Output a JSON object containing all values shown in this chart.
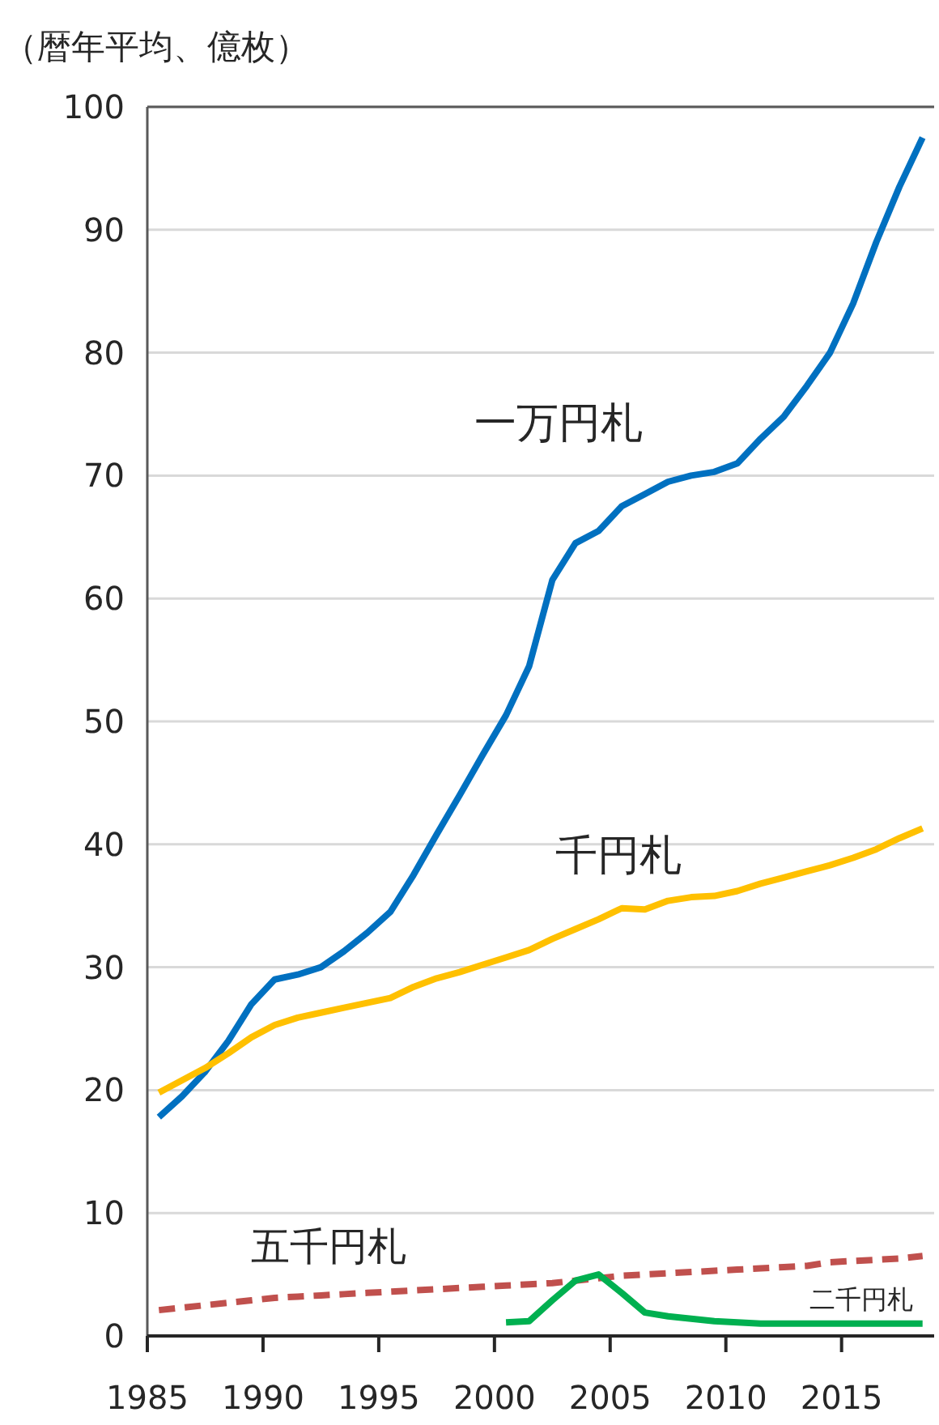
{
  "chart_data": {
    "type": "line",
    "ylabel": "（暦年平均、億枚）",
    "xlim": [
      1985,
      2019
    ],
    "xticks": [
      1985,
      1990,
      1995,
      2000,
      2005,
      2010,
      2015
    ],
    "ylim": [
      0,
      100
    ],
    "yticks": [
      0,
      10,
      20,
      30,
      40,
      50,
      60,
      70,
      80,
      90,
      100
    ],
    "grid": "y",
    "legend": false,
    "marker": "none",
    "series": [
      {
        "name": "一万円札",
        "color": "#0070c0",
        "line_style": "solid",
        "x": [
          1985.5,
          1986.5,
          1987.5,
          1988.5,
          1989.5,
          1990.5,
          1991.5,
          1992.5,
          1993.5,
          1994.5,
          1995.5,
          1996.5,
          1997.5,
          1998.5,
          1999.5,
          2000.5,
          2001.5,
          2002.5,
          2003.5,
          2004.5,
          2005.5,
          2006.5,
          2007.5,
          2008.5,
          2009.5,
          2010.5,
          2011.5,
          2012.5,
          2013.5,
          2014.5,
          2015.5,
          2016.5,
          2017.5,
          2018.5
        ],
        "values": [
          17.8,
          19.5,
          21.5,
          24,
          27,
          29,
          29.4,
          30,
          31.3,
          32.8,
          34.5,
          37.5,
          40.8,
          44,
          47.3,
          50.5,
          54.5,
          61.5,
          64.5,
          65.5,
          67.5,
          68.5,
          69.5,
          70,
          70.3,
          71,
          73,
          74.8,
          77.3,
          80,
          84,
          89,
          93.5,
          97.5
        ]
      },
      {
        "name": "千円札",
        "color": "#ffc000",
        "line_style": "solid",
        "x": [
          1985.5,
          1986.5,
          1987.5,
          1988.5,
          1989.5,
          1990.5,
          1991.5,
          1992.5,
          1993.5,
          1994.5,
          1995.5,
          1996.5,
          1997.5,
          1998.5,
          1999.5,
          2000.5,
          2001.5,
          2002.5,
          2003.5,
          2004.5,
          2005.5,
          2006.5,
          2007.5,
          2008.5,
          2009.5,
          2010.5,
          2011.5,
          2012.5,
          2013.5,
          2014.5,
          2015.5,
          2016.5,
          2017.5,
          2018.5
        ],
        "values": [
          19.8,
          20.8,
          21.8,
          23,
          24.3,
          25.3,
          25.9,
          26.3,
          26.7,
          27.1,
          27.5,
          28.4,
          29.1,
          29.6,
          30.2,
          30.8,
          31.4,
          32.3,
          33.1,
          33.9,
          34.8,
          34.7,
          35.4,
          35.7,
          35.8,
          36.2,
          36.8,
          37.3,
          37.8,
          38.3,
          38.9,
          39.6,
          40.5,
          41.3
        ]
      },
      {
        "name": "五千円札",
        "color": "#c0504d",
        "line_style": "dashed",
        "x": [
          1985.5,
          1986.5,
          1987.5,
          1988.5,
          1989.5,
          1990.5,
          1991.5,
          1992.5,
          1993.5,
          1994.5,
          1995.5,
          1996.5,
          1997.5,
          1998.5,
          1999.5,
          2000.5,
          2001.5,
          2002.5,
          2003.5,
          2004.5,
          2005.5,
          2006.5,
          2007.5,
          2008.5,
          2009.5,
          2010.5,
          2011.5,
          2012.5,
          2013.5,
          2014.5,
          2015.5,
          2016.5,
          2017.5,
          2018.5
        ],
        "values": [
          2.1,
          2.3,
          2.5,
          2.7,
          2.9,
          3.1,
          3.2,
          3.3,
          3.4,
          3.5,
          3.6,
          3.7,
          3.8,
          3.9,
          4,
          4.1,
          4.2,
          4.3,
          4.5,
          4.7,
          4.9,
          5,
          5.1,
          5.2,
          5.3,
          5.4,
          5.5,
          5.6,
          5.7,
          6,
          6.1,
          6.2,
          6.3,
          6.5
        ]
      },
      {
        "name": "二千円札",
        "color": "#00b050",
        "line_style": "solid",
        "x": [
          2000.5,
          2001.5,
          2002.5,
          2003.5,
          2004.5,
          2005.5,
          2006.5,
          2007.5,
          2008.5,
          2009.5,
          2010.5,
          2011.5,
          2012.5,
          2013.5,
          2014.5,
          2015.5,
          2016.5,
          2017.5,
          2018.5
        ],
        "values": [
          1.1,
          1.2,
          2.9,
          4.5,
          5,
          3.5,
          1.9,
          1.6,
          1.4,
          1.2,
          1.1,
          1,
          1,
          1,
          1,
          1,
          1,
          1,
          1
        ]
      }
    ]
  }
}
